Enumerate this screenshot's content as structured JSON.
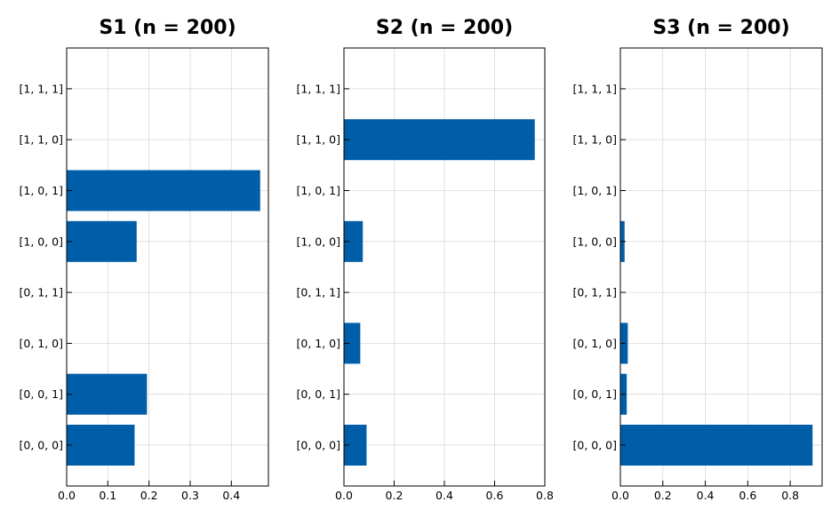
{
  "chart_data": [
    {
      "type": "bar",
      "orientation": "horizontal",
      "title": "S1 (n = 200)",
      "categories": [
        "[0, 0, 0]",
        "[0, 0, 1]",
        "[0, 1, 0]",
        "[0, 1, 1]",
        "[1, 0, 0]",
        "[1, 0, 1]",
        "[1, 1, 0]",
        "[1, 1, 1]"
      ],
      "values": [
        0.165,
        0.195,
        0.0,
        0.0,
        0.17,
        0.47,
        0.0,
        0.0
      ],
      "xlim": [
        0,
        0.49
      ],
      "xticks": [
        0.0,
        0.1,
        0.2,
        0.3,
        0.4
      ],
      "xtick_labels": [
        "0.0",
        "0.1",
        "0.2",
        "0.3",
        "0.4"
      ],
      "bar_color": "#005ea8",
      "grid": true
    },
    {
      "type": "bar",
      "orientation": "horizontal",
      "title": "S2 (n = 200)",
      "categories": [
        "[0, 0, 0]",
        "[0, 0, 1]",
        "[0, 1, 0]",
        "[0, 1, 1]",
        "[1, 0, 0]",
        "[1, 0, 1]",
        "[1, 1, 0]",
        "[1, 1, 1]"
      ],
      "values": [
        0.09,
        0.0,
        0.065,
        0.0,
        0.075,
        0.0,
        0.76,
        0.0
      ],
      "xlim": [
        0,
        0.8
      ],
      "xticks": [
        0.0,
        0.2,
        0.4,
        0.6,
        0.8
      ],
      "xtick_labels": [
        "0.0",
        "0.2",
        "0.4",
        "0.6",
        "0.8"
      ],
      "bar_color": "#005ea8",
      "grid": true
    },
    {
      "type": "bar",
      "orientation": "horizontal",
      "title": "S3 (n = 200)",
      "categories": [
        "[0, 0, 0]",
        "[0, 0, 1]",
        "[0, 1, 0]",
        "[0, 1, 1]",
        "[1, 0, 0]",
        "[1, 0, 1]",
        "[1, 1, 0]",
        "[1, 1, 1]"
      ],
      "values": [
        0.905,
        0.03,
        0.035,
        0.0,
        0.02,
        0.0,
        0.0,
        0.0
      ],
      "xlim": [
        0,
        0.95
      ],
      "xticks": [
        0.0,
        0.2,
        0.4,
        0.6,
        0.8
      ],
      "xtick_labels": [
        "0.0",
        "0.2",
        "0.4",
        "0.6",
        "0.8"
      ],
      "bar_color": "#005ea8",
      "grid": true
    }
  ]
}
